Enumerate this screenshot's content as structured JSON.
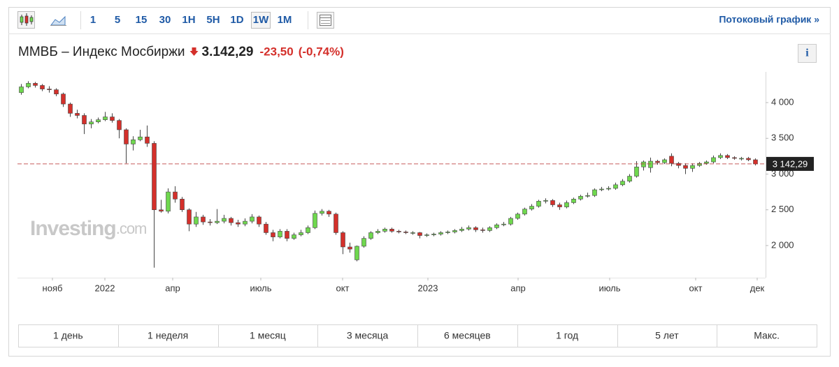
{
  "toolbar": {
    "intervals": [
      "1",
      "5",
      "15",
      "30",
      "1H",
      "5H",
      "1D",
      "1W",
      "1M"
    ],
    "active": 7,
    "streaming_link": "Потоковый график »"
  },
  "header": {
    "title": "ММВБ – Индекс Мосбиржи",
    "price": "3.142,29",
    "change": "-23,50",
    "change_percent": "(-0,74%)",
    "info": "i"
  },
  "watermark": {
    "brand": "Investing",
    "suffix": ".com"
  },
  "chart_data": {
    "type": "candlestick",
    "open": [
      4140,
      4220,
      4270,
      4240,
      4190,
      4180,
      4120,
      3980,
      3850,
      3820,
      3700,
      3730,
      3760,
      3800,
      3750,
      3620,
      3420,
      3480,
      3520,
      3430,
      2500,
      2480,
      2750,
      2650,
      2500,
      2300,
      2400,
      2330,
      2320,
      2340,
      2380,
      2320,
      2300,
      2340,
      2400,
      2300,
      2180,
      2120,
      2200,
      2100,
      2150,
      2180,
      2250,
      2450,
      2480,
      2440,
      2180,
      1980,
      1800,
      1990,
      2100,
      2180,
      2200,
      2230,
      2200,
      2190,
      2180,
      2180,
      2140,
      2150,
      2160,
      2180,
      2190,
      2210,
      2230,
      2250,
      2220,
      2210,
      2250,
      2290,
      2300,
      2380,
      2440,
      2510,
      2550,
      2620,
      2630,
      2570,
      2540,
      2600,
      2650,
      2690,
      2700,
      2780,
      2790,
      2800,
      2850,
      2900,
      2970,
      3100,
      3090,
      3180,
      3160,
      3250,
      3150,
      3120,
      3080,
      3120,
      3150,
      3170,
      3230,
      3260,
      3230,
      3220,
      3220,
      3200
    ],
    "high": [
      4260,
      4300,
      4290,
      4260,
      4230,
      4200,
      4140,
      4000,
      3900,
      3850,
      3770,
      3790,
      3870,
      3850,
      3770,
      3640,
      3530,
      3620,
      3680,
      3460,
      2640,
      2800,
      2830,
      2680,
      2520,
      2470,
      2430,
      2370,
      2510,
      2430,
      2400,
      2360,
      2380,
      2440,
      2420,
      2330,
      2220,
      2230,
      2230,
      2180,
      2220,
      2280,
      2490,
      2510,
      2500,
      2460,
      2200,
      2040,
      2000,
      2130,
      2200,
      2230,
      2250,
      2250,
      2220,
      2210,
      2200,
      2190,
      2170,
      2180,
      2200,
      2210,
      2230,
      2260,
      2280,
      2270,
      2250,
      2270,
      2310,
      2330,
      2400,
      2460,
      2530,
      2580,
      2640,
      2660,
      2650,
      2600,
      2630,
      2670,
      2710,
      2740,
      2800,
      2820,
      2830,
      2880,
      2930,
      3000,
      3180,
      3190,
      3230,
      3200,
      3220,
      3290,
      3170,
      3150,
      3150,
      3170,
      3190,
      3260,
      3290,
      3280,
      3250,
      3240,
      3240,
      3220
    ],
    "low": [
      4110,
      4200,
      4210,
      4160,
      4140,
      4090,
      3940,
      3800,
      3780,
      3560,
      3640,
      3710,
      3740,
      3720,
      3500,
      3150,
      3330,
      3460,
      3380,
      1690,
      2460,
      2450,
      2600,
      2470,
      2200,
      2260,
      2290,
      2280,
      2300,
      2310,
      2280,
      2260,
      2270,
      2310,
      2260,
      2150,
      2060,
      2100,
      2060,
      2080,
      2130,
      2160,
      2230,
      2420,
      2400,
      2150,
      1880,
      1900,
      1780,
      1970,
      2080,
      2160,
      2180,
      2180,
      2170,
      2160,
      2150,
      2100,
      2120,
      2130,
      2140,
      2160,
      2170,
      2190,
      2210,
      2190,
      2180,
      2190,
      2230,
      2270,
      2280,
      2360,
      2420,
      2490,
      2530,
      2590,
      2540,
      2500,
      2520,
      2580,
      2630,
      2670,
      2680,
      2760,
      2770,
      2780,
      2830,
      2880,
      2950,
      3050,
      3020,
      3130,
      3140,
      3110,
      3080,
      3000,
      3030,
      3100,
      3130,
      3150,
      3210,
      3210,
      3200,
      3190,
      3180,
      3120
    ],
    "close": [
      4220,
      4270,
      4240,
      4190,
      4180,
      4120,
      3980,
      3850,
      3820,
      3700,
      3730,
      3760,
      3800,
      3750,
      3620,
      3420,
      3480,
      3520,
      3430,
      2500,
      2480,
      2750,
      2650,
      2500,
      2300,
      2400,
      2330,
      2320,
      2340,
      2380,
      2320,
      2300,
      2340,
      2400,
      2300,
      2180,
      2120,
      2200,
      2100,
      2150,
      2180,
      2250,
      2450,
      2480,
      2440,
      2180,
      1980,
      1950,
      1990,
      2100,
      2180,
      2200,
      2230,
      2200,
      2190,
      2180,
      2180,
      2140,
      2150,
      2160,
      2180,
      2190,
      2210,
      2230,
      2250,
      2220,
      2210,
      2250,
      2290,
      2300,
      2380,
      2440,
      2510,
      2550,
      2620,
      2630,
      2570,
      2540,
      2600,
      2650,
      2690,
      2700,
      2780,
      2790,
      2800,
      2850,
      2900,
      2970,
      3100,
      3170,
      3180,
      3160,
      3200,
      3150,
      3120,
      3080,
      3120,
      3150,
      3170,
      3230,
      3260,
      3230,
      3220,
      3220,
      3200,
      3142.29
    ],
    "up_color": "#6fd84e",
    "down_color": "#d4302b",
    "last_value": 3142.29,
    "last_label": "3 142,29",
    "xlim": [
      -0.5,
      106.5
    ],
    "xticks": [
      {
        "value": 4.5,
        "label": "нояб"
      },
      {
        "value": 12,
        "label": "2022"
      },
      {
        "value": 21.7,
        "label": "апр"
      },
      {
        "value": 34.3,
        "label": "июль"
      },
      {
        "value": 46,
        "label": "окт"
      },
      {
        "value": 58.2,
        "label": "2023"
      },
      {
        "value": 71.1,
        "label": "апр"
      },
      {
        "value": 84.2,
        "label": "июль"
      },
      {
        "value": 96.5,
        "label": "окт"
      },
      {
        "value": 105.3,
        "label": "дек"
      }
    ],
    "ylim": [
      1550,
      4430
    ],
    "yticks": [
      {
        "value": 2000,
        "label": "2 000"
      },
      {
        "value": 2500,
        "label": "2 500"
      },
      {
        "value": 3000,
        "label": "3 000"
      },
      {
        "value": 3500,
        "label": "3 500"
      },
      {
        "value": 4000,
        "label": "4 000"
      }
    ]
  },
  "ranges": [
    "1 день",
    "1 неделя",
    "1 месяц",
    "3 месяца",
    "6 месяцев",
    "1 год",
    "5 лет",
    "Макс."
  ]
}
